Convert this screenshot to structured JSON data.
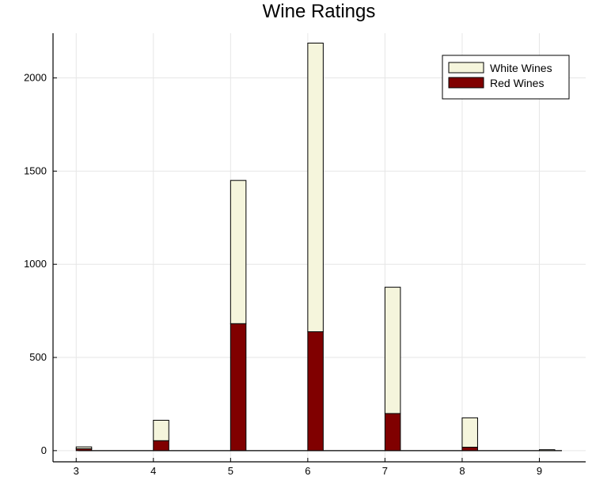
{
  "chart_data": {
    "type": "bar",
    "stacked": true,
    "title": "Wine Ratings",
    "xlabel": "",
    "ylabel": "",
    "categories": [
      "3",
      "4",
      "5",
      "6",
      "7",
      "8",
      "9"
    ],
    "x": [
      3,
      4,
      5,
      6,
      7,
      8,
      9
    ],
    "x_ticks": [
      "3",
      "4",
      "5",
      "6",
      "7",
      "8",
      "9"
    ],
    "y_ticks": [
      "0",
      "500",
      "1000",
      "1500",
      "2000"
    ],
    "xlim": [
      2.7,
      9.6
    ],
    "ylim": [
      -60,
      2240
    ],
    "grid": true,
    "legend_position": "top-right",
    "series": [
      {
        "name": "Red Wines",
        "color": "#800000",
        "values": [
          10,
          53,
          681,
          638,
          199,
          18,
          0
        ]
      },
      {
        "name": "White Wines",
        "color": "#f5f5dc",
        "values": [
          10,
          110,
          769,
          1549,
          678,
          158,
          5
        ]
      }
    ]
  }
}
